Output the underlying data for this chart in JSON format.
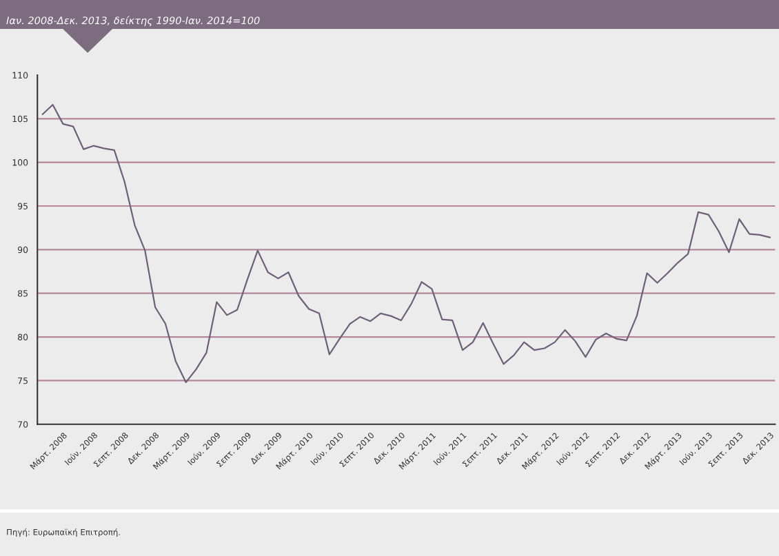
{
  "chart_data": {
    "type": "line",
    "subtitle": "Ιαν. 2008-Δεκ. 2013, δείκτης 1990-Ιαν. 2014=100",
    "categories": [
      null,
      null,
      "Μάρτ. 2008",
      null,
      null,
      "Ιούν. 2008",
      null,
      null,
      "Σεπτ. 2008",
      null,
      null,
      "Δεκ. 2008",
      null,
      null,
      "Μάρτ. 2009",
      null,
      null,
      "Ιούν. 2009",
      null,
      null,
      "Σεπτ. 2009",
      null,
      null,
      "Δεκ. 2009",
      null,
      null,
      "Μάρτ. 2010",
      null,
      null,
      "Ιούν. 2010",
      null,
      null,
      "Σεπτ. 2010",
      null,
      null,
      "Δεκ. 2010",
      null,
      null,
      "Μάρτ. 2011",
      null,
      null,
      "Ιούν. 2011",
      null,
      null,
      "Σεπτ. 2011",
      null,
      null,
      "Δεκ. 2011",
      null,
      null,
      "Μάρτ. 2012",
      null,
      null,
      "Ιούν. 2012",
      null,
      null,
      "Σεπτ. 2012",
      null,
      null,
      "Δεκ. 2012",
      null,
      null,
      "Μάρτ. 2013",
      null,
      null,
      "Ιούν. 2013",
      null,
      null,
      "Σεπτ. 2013",
      null,
      null,
      "Δεκ. 2013"
    ],
    "series": [
      {
        "color": "#6e6078",
        "values": [
          105.5,
          106.6,
          104.4,
          104.1,
          101.5,
          101.9,
          101.6,
          101.4,
          97.8,
          92.8,
          89.9,
          83.4,
          81.5,
          77.2,
          74.8,
          76.3,
          78.2,
          84.0,
          82.5,
          83.1,
          86.6,
          89.9,
          87.4,
          86.7,
          87.4,
          84.7,
          83.2,
          82.7,
          78.0,
          79.8,
          81.5,
          82.3,
          81.8,
          82.7,
          82.4,
          81.9,
          83.8,
          86.3,
          85.5,
          82.0,
          81.9,
          78.5,
          79.4,
          81.6,
          79.2,
          76.9,
          77.9,
          79.4,
          78.5,
          78.7,
          79.4,
          80.8,
          79.5,
          77.7,
          79.7,
          80.4,
          79.8,
          79.6,
          82.4,
          87.3,
          86.2,
          87.3,
          88.5,
          89.5,
          94.3,
          94.0,
          92.1,
          89.7,
          93.5,
          91.8,
          91.7,
          91.4
        ]
      }
    ],
    "ylim": [
      70,
      110
    ],
    "yticks": [
      70,
      75,
      80,
      85,
      90,
      95,
      100,
      105,
      110
    ],
    "grid": "y",
    "legend": false,
    "marker": "none",
    "line_style": "solid",
    "annotations": [
      "Πηγή: Ευρωπαϊκή Επιτροπή."
    ]
  }
}
